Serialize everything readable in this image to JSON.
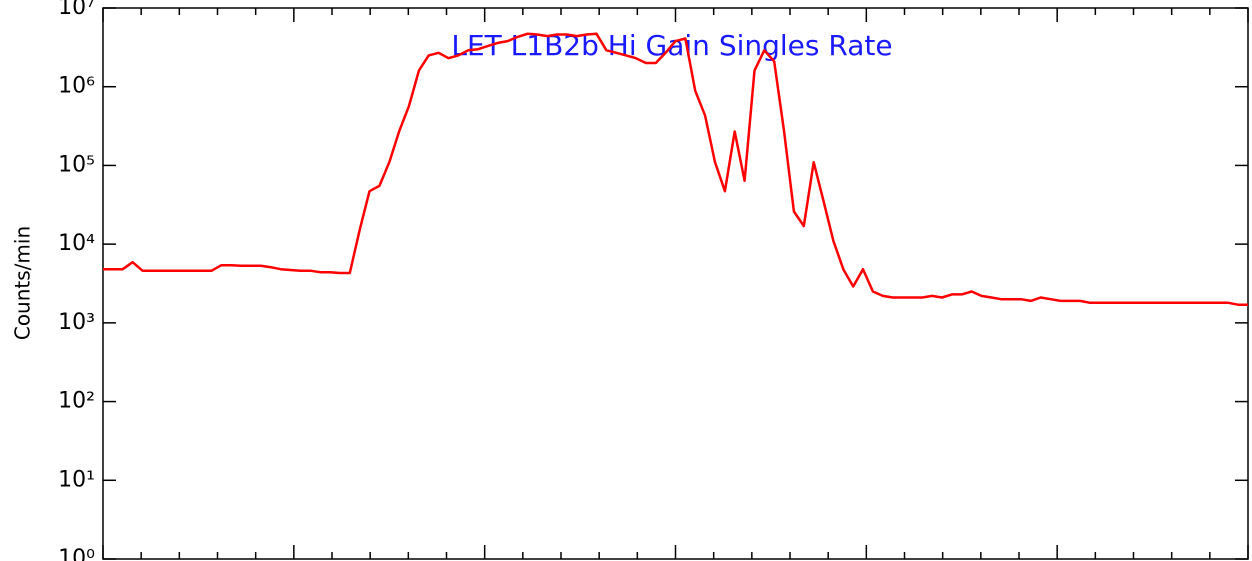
{
  "chart_data": {
    "type": "line",
    "title": "LET L1B2b Hi Gain Singles Rate",
    "y_label": "Counts/min",
    "log_y": true,
    "ylim": [
      1,
      10000000
    ],
    "yticks": [
      {
        "value": 1,
        "label": "10⁰"
      },
      {
        "value": 10,
        "label": "10¹"
      },
      {
        "value": 100,
        "label": "10²"
      },
      {
        "value": 1000,
        "label": "10³"
      },
      {
        "value": 10000,
        "label": "10⁴"
      },
      {
        "value": 100000,
        "label": "10⁵"
      },
      {
        "value": 1000000,
        "label": "10⁶"
      },
      {
        "value": 10000000,
        "label": "10⁷"
      }
    ],
    "series": [
      {
        "color": "#ff0000",
        "values": [
          4800,
          4800,
          4800,
          5900,
          4600,
          4600,
          4600,
          4600,
          4600,
          4600,
          4600,
          4600,
          5400,
          5400,
          5300,
          5300,
          5300,
          5100,
          4800,
          4700,
          4600,
          4600,
          4400,
          4400,
          4300,
          4300,
          15000,
          47000,
          55000,
          110000,
          270000,
          570000,
          1600000,
          2500000,
          2700000,
          2300000,
          2500000,
          2900000,
          3000000,
          3300000,
          3600000,
          3800000,
          4300000,
          4700000,
          4600000,
          4400000,
          4600000,
          4600000,
          4400000,
          4600000,
          4700000,
          2900000,
          2700000,
          2500000,
          2300000,
          2000000,
          2000000,
          2700000,
          3800000,
          4100000,
          890000,
          430000,
          110000,
          47000,
          270000,
          64000,
          1600000,
          2900000,
          2100000,
          270000,
          26000,
          17000,
          110000,
          35000,
          11000,
          4800,
          2900,
          4800,
          2500,
          2200,
          2100,
          2100,
          2100,
          2100,
          2200,
          2100,
          2300,
          2300,
          2500,
          2200,
          2100,
          2000,
          2000,
          2000,
          1900,
          2100,
          2000,
          1900,
          1900,
          1900,
          1800,
          1800,
          1800,
          1800,
          1800,
          1800,
          1800,
          1800,
          1800,
          1800,
          1800,
          1800,
          1800,
          1800,
          1800,
          1700,
          1700
        ]
      }
    ]
  }
}
